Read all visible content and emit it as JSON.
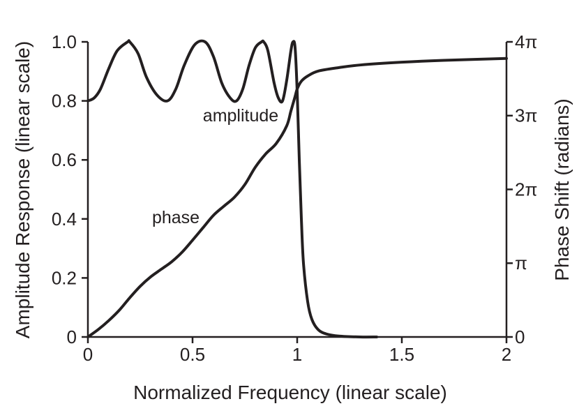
{
  "chart_data": {
    "type": "line",
    "title": "",
    "xlabel": "Normalized Frequency (linear scale)",
    "ylabel_left": "Amplitude Response (linear scale)",
    "ylabel_right": "Phase Shift (radians)",
    "xlim": [
      0,
      2
    ],
    "ylim_left": [
      0,
      1
    ],
    "ylim_right": [
      0,
      12.566
    ],
    "x_ticks": [
      {
        "value": 0,
        "label": "0"
      },
      {
        "value": 0.5,
        "label": "0.5"
      },
      {
        "value": 1,
        "label": "1"
      },
      {
        "value": 1.5,
        "label": "1.5"
      },
      {
        "value": 2,
        "label": "2"
      }
    ],
    "y_ticks_left": [
      {
        "value": 0,
        "label": "0"
      },
      {
        "value": 0.2,
        "label": "0.2"
      },
      {
        "value": 0.4,
        "label": "0.4"
      },
      {
        "value": 0.6,
        "label": "0.6"
      },
      {
        "value": 0.8,
        "label": "0.8"
      },
      {
        "value": 1.0,
        "label": "1.0"
      }
    ],
    "y_ticks_right": [
      {
        "value": 0,
        "label": "0"
      },
      {
        "value": 3.1416,
        "label": "π"
      },
      {
        "value": 6.2832,
        "label": "2π"
      },
      {
        "value": 9.4248,
        "label": "3π"
      },
      {
        "value": 12.566,
        "label": "4π"
      }
    ],
    "grid": false,
    "legend": "none",
    "annotations": [
      {
        "text": "amplitude",
        "x": 0.73,
        "y": 0.73,
        "axis": "left"
      },
      {
        "text": "phase",
        "x": 0.42,
        "y": 0.385,
        "axis": "left"
      }
    ],
    "series": [
      {
        "name": "amplitude",
        "axis": "left",
        "x": [
          0,
          0.03,
          0.06,
          0.1,
          0.14,
          0.19,
          0.2,
          0.24,
          0.28,
          0.33,
          0.38,
          0.42,
          0.46,
          0.51,
          0.56,
          0.6,
          0.64,
          0.68,
          0.71,
          0.74,
          0.77,
          0.8,
          0.83,
          0.84,
          0.86,
          0.89,
          0.91,
          0.93,
          0.95,
          0.97,
          0.98,
          0.99,
          1.0,
          1.01,
          1.02,
          1.03,
          1.05,
          1.07,
          1.1,
          1.14,
          1.2,
          1.3,
          1.38
        ],
        "y": [
          0.8,
          0.81,
          0.84,
          0.91,
          0.97,
          1.0,
          1.0,
          0.96,
          0.88,
          0.82,
          0.8,
          0.84,
          0.92,
          0.99,
          1.0,
          0.95,
          0.86,
          0.81,
          0.8,
          0.84,
          0.92,
          0.98,
          1.0,
          1.0,
          0.97,
          0.86,
          0.81,
          0.8,
          0.87,
          0.97,
          1.0,
          0.98,
          0.83,
          0.6,
          0.4,
          0.25,
          0.12,
          0.06,
          0.025,
          0.01,
          0.003,
          0.0,
          0.0
        ]
      },
      {
        "name": "phase",
        "axis": "right",
        "x": [
          0,
          0.05,
          0.1,
          0.15,
          0.2,
          0.25,
          0.3,
          0.35,
          0.4,
          0.45,
          0.5,
          0.55,
          0.6,
          0.65,
          0.7,
          0.75,
          0.8,
          0.85,
          0.9,
          0.95,
          0.97,
          0.99,
          1.0,
          1.02,
          1.05,
          1.1,
          1.2,
          1.3,
          1.5,
          1.7,
          2.0
        ],
        "y": [
          0.0,
          0.32,
          0.7,
          1.14,
          1.67,
          2.16,
          2.56,
          2.88,
          3.2,
          3.61,
          4.12,
          4.65,
          5.18,
          5.57,
          5.95,
          6.49,
          7.23,
          7.8,
          8.24,
          8.99,
          9.62,
          10.24,
          10.56,
          10.89,
          11.11,
          11.32,
          11.47,
          11.58,
          11.7,
          11.78,
          11.86
        ]
      }
    ]
  }
}
